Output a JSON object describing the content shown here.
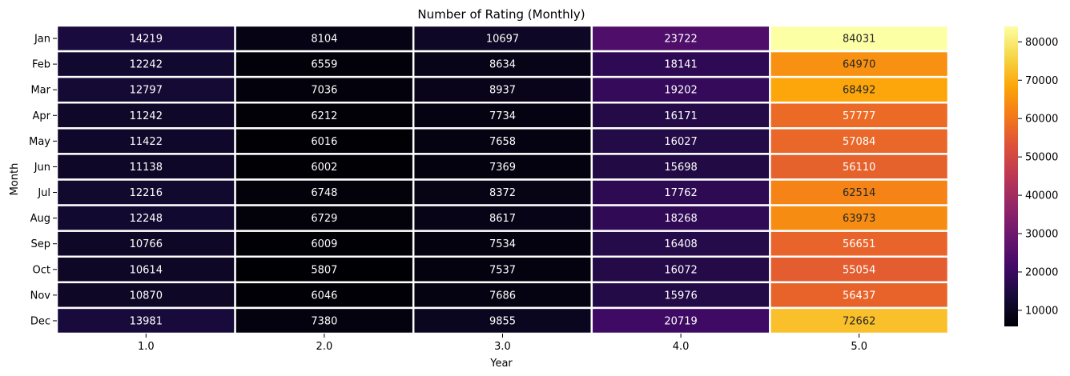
{
  "chart_data": {
    "type": "heatmap",
    "title": "Number of Rating (Monthly)",
    "xlabel": "Year",
    "ylabel": "Month",
    "x_categories": [
      "1.0",
      "2.0",
      "3.0",
      "4.0",
      "5.0"
    ],
    "y_categories": [
      "Jan",
      "Feb",
      "Mar",
      "Apr",
      "May",
      "Jun",
      "Jul",
      "Aug",
      "Sep",
      "Oct",
      "Nov",
      "Dec"
    ],
    "values": [
      [
        14219,
        8104,
        10697,
        23722,
        84031
      ],
      [
        12242,
        6559,
        8634,
        18141,
        64970
      ],
      [
        12797,
        7036,
        8937,
        19202,
        68492
      ],
      [
        11242,
        6212,
        7734,
        16171,
        57777
      ],
      [
        11422,
        6016,
        7658,
        16027,
        57084
      ],
      [
        11138,
        6002,
        7369,
        15698,
        56110
      ],
      [
        12216,
        6748,
        8372,
        17762,
        62514
      ],
      [
        12248,
        6729,
        8617,
        18268,
        63973
      ],
      [
        10766,
        6009,
        7534,
        16408,
        56651
      ],
      [
        10614,
        5807,
        7537,
        16072,
        55054
      ],
      [
        10870,
        6046,
        7686,
        15976,
        56437
      ],
      [
        13981,
        7380,
        9855,
        20719,
        72662
      ]
    ],
    "colormap": "inferno",
    "vmin": 5807,
    "vmax": 84031,
    "colorbar_ticks": [
      "10000",
      "20000",
      "30000",
      "40000",
      "50000",
      "60000",
      "70000",
      "80000"
    ],
    "colorbar_tick_values": [
      10000,
      20000,
      30000,
      40000,
      50000,
      60000,
      70000,
      80000
    ],
    "grid_line_color": "#ffffff"
  }
}
